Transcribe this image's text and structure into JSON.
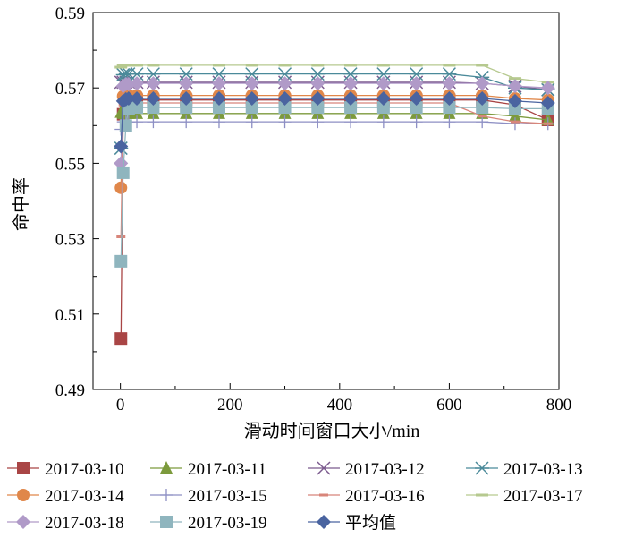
{
  "chart_data": {
    "type": "line",
    "xlabel": "滑动时间窗口大小/min",
    "ylabel": "命中率",
    "xlim": [
      -50,
      800
    ],
    "ylim": [
      0.49,
      0.59
    ],
    "xticks": [
      0,
      200,
      400,
      600,
      800
    ],
    "yticks": [
      0.49,
      0.51,
      0.53,
      0.55,
      0.57,
      0.59
    ],
    "ytick_labels": [
      "0.49",
      "0.51",
      "0.53",
      "0.55",
      "0.57",
      "0.59"
    ],
    "x": [
      1,
      5,
      10,
      15,
      30,
      60,
      120,
      180,
      240,
      300,
      360,
      420,
      480,
      540,
      600,
      660,
      720,
      780
    ],
    "grid": false,
    "legend_position": "bottom",
    "series": [
      {
        "name": "2017-03-10",
        "color": "#a94545",
        "marker": "square",
        "values": [
          0.5035,
          0.563,
          0.5665,
          0.5668,
          0.5668,
          0.5668,
          0.5668,
          0.5668,
          0.5668,
          0.5668,
          0.5668,
          0.5668,
          0.5668,
          0.5668,
          0.5668,
          0.5668,
          0.5655,
          0.5615
        ]
      },
      {
        "name": "2017-03-11",
        "color": "#7c9a3c",
        "marker": "triangle",
        "values": [
          0.5635,
          0.5632,
          0.5632,
          0.5632,
          0.5632,
          0.5632,
          0.5632,
          0.5632,
          0.5632,
          0.5632,
          0.5632,
          0.5632,
          0.5632,
          0.5632,
          0.5632,
          0.5632,
          0.5625,
          0.5615
        ]
      },
      {
        "name": "2017-03-12",
        "color": "#7b5a8e",
        "marker": "x",
        "values": [
          0.5715,
          0.5715,
          0.5715,
          0.5715,
          0.5715,
          0.5715,
          0.5715,
          0.5715,
          0.5715,
          0.5715,
          0.5715,
          0.5715,
          0.5715,
          0.5715,
          0.5715,
          0.5712,
          0.5705,
          0.5695
        ]
      },
      {
        "name": "2017-03-13",
        "color": "#4b8a9a",
        "marker": "asterisk",
        "values": [
          0.554,
          0.5735,
          0.5737,
          0.5737,
          0.5737,
          0.5737,
          0.5737,
          0.5737,
          0.5737,
          0.5737,
          0.5737,
          0.5737,
          0.5737,
          0.5737,
          0.5737,
          0.5728,
          0.57,
          0.5695
        ]
      },
      {
        "name": "2017-03-14",
        "color": "#e0874a",
        "marker": "circle",
        "values": [
          0.5435,
          0.5678,
          0.568,
          0.568,
          0.568,
          0.568,
          0.568,
          0.568,
          0.568,
          0.568,
          0.568,
          0.568,
          0.568,
          0.568,
          0.568,
          0.568,
          0.5672,
          0.5668
        ]
      },
      {
        "name": "2017-03-15",
        "color": "#8d8fc4",
        "marker": "plus",
        "values": [
          0.559,
          0.561,
          0.561,
          0.561,
          0.561,
          0.561,
          0.561,
          0.561,
          0.561,
          0.561,
          0.561,
          0.561,
          0.561,
          0.561,
          0.561,
          0.561,
          0.5605,
          0.5605
        ]
      },
      {
        "name": "2017-03-16",
        "color": "#d8857a",
        "marker": "dash",
        "values": [
          0.5305,
          0.5655,
          0.566,
          0.566,
          0.566,
          0.566,
          0.566,
          0.566,
          0.566,
          0.566,
          0.566,
          0.566,
          0.566,
          0.566,
          0.566,
          0.5625,
          0.561,
          0.5605
        ]
      },
      {
        "name": "2017-03-17",
        "color": "#b6c98f",
        "marker": "hline",
        "values": [
          0.5755,
          0.576,
          0.576,
          0.576,
          0.576,
          0.576,
          0.576,
          0.576,
          0.576,
          0.576,
          0.576,
          0.576,
          0.576,
          0.576,
          0.576,
          0.576,
          0.5725,
          0.5715
        ]
      },
      {
        "name": "2017-03-18",
        "color": "#b09ac8",
        "marker": "diamond",
        "values": [
          0.55,
          0.5705,
          0.571,
          0.571,
          0.5712,
          0.5712,
          0.5712,
          0.5712,
          0.5712,
          0.5712,
          0.5712,
          0.5712,
          0.5712,
          0.5712,
          0.5712,
          0.5712,
          0.5705,
          0.57
        ]
      },
      {
        "name": "2017-03-19",
        "color": "#8fb5be",
        "marker": "square",
        "values": [
          0.524,
          0.5475,
          0.56,
          0.5645,
          0.5648,
          0.5648,
          0.5648,
          0.5648,
          0.5648,
          0.5648,
          0.5648,
          0.5648,
          0.5648,
          0.5648,
          0.5648,
          0.5648,
          0.5645,
          0.5645
        ]
      },
      {
        "name": "平均值",
        "color": "#4a64a0",
        "marker": "diamond",
        "values": [
          0.5545,
          0.5665,
          0.567,
          0.5672,
          0.5672,
          0.5672,
          0.5672,
          0.5672,
          0.5672,
          0.5672,
          0.5672,
          0.5672,
          0.5672,
          0.5672,
          0.5672,
          0.5672,
          0.5665,
          0.566
        ]
      }
    ]
  }
}
